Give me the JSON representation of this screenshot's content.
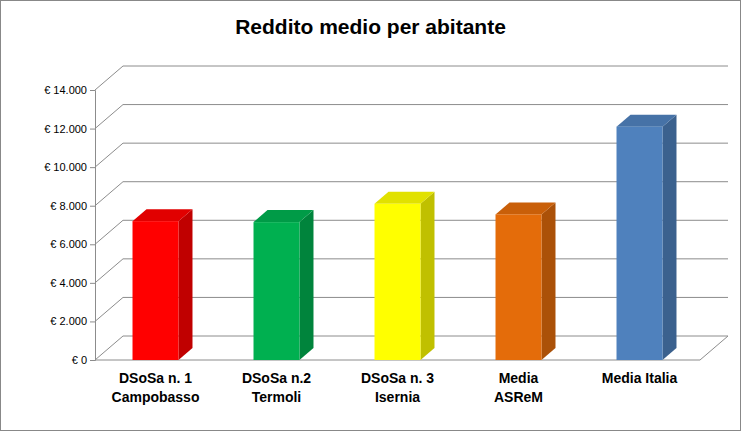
{
  "chart_data": {
    "type": "bar",
    "title": "Reddito medio per abitante",
    "categories": [
      "DSoSa n. 1\nCampobasso",
      "DSoSa n.2\nTermoli",
      "DSoSa n. 3\nIsernia",
      "Media\nASReM",
      "Media Italia"
    ],
    "values": [
      7200,
      7150,
      8100,
      7550,
      12100
    ],
    "colors": [
      "#ff0000",
      "#00b050",
      "#ffff00",
      "#e46c0a",
      "#4f81bd"
    ],
    "ylim": [
      0,
      14000
    ],
    "yticks": [
      {
        "value": 0,
        "label": "€ 0"
      },
      {
        "value": 2000,
        "label": "€ 2.000"
      },
      {
        "value": 4000,
        "label": "€ 4.000"
      },
      {
        "value": 6000,
        "label": "€ 6.000"
      },
      {
        "value": 8000,
        "label": "€ 8.000"
      },
      {
        "value": 10000,
        "label": "€ 10.000"
      },
      {
        "value": 12000,
        "label": "€ 12.000"
      },
      {
        "value": 14000,
        "label": "€ 14.000"
      }
    ],
    "grid": true
  }
}
